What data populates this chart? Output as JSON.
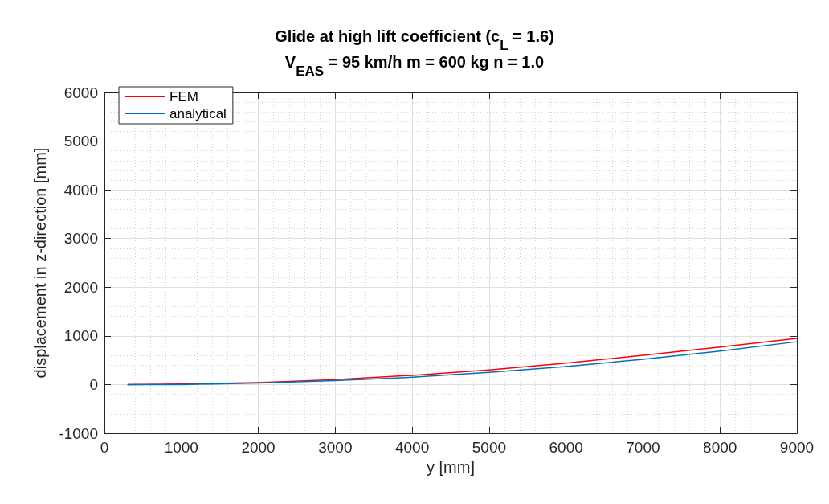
{
  "chart_data": {
    "type": "line",
    "title": "Glide at high lift coefficient (c$_{L}$ = 1.6)",
    "subtitle": "V$_{EAS}$ = 95 km/h m = 600 kg n = 1.0",
    "xlabel": "y [mm]",
    "ylabel": "displacement in z-direction [mm]",
    "x": [
      300,
      1000,
      2000,
      3000,
      4000,
      5000,
      6000,
      7000,
      8000,
      9000
    ],
    "series": [
      {
        "name": "FEM",
        "color": "#ff0000",
        "values": [
          0,
          10,
          40,
          100,
          190,
          300,
          440,
          600,
          770,
          950
        ]
      },
      {
        "name": "analytical",
        "color": "#0072bd",
        "values": [
          0,
          0,
          30,
          80,
          150,
          250,
          370,
          520,
          690,
          880
        ]
      }
    ],
    "xlim": [
      0,
      9000
    ],
    "xticks": [
      0,
      1000,
      2000,
      3000,
      4000,
      5000,
      6000,
      7000,
      8000,
      9000
    ],
    "ylim": [
      -1000,
      6000
    ],
    "yticks": [
      -1000,
      0,
      1000,
      2000,
      3000,
      4000,
      5000,
      6000
    ],
    "grid": true,
    "legend": "top left",
    "marker": "none",
    "line_style": "solid"
  }
}
